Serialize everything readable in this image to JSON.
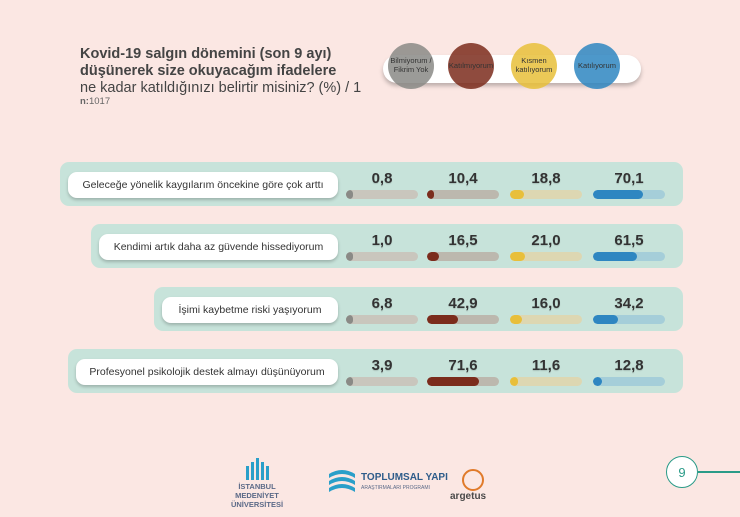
{
  "title": {
    "bold_line1": "Kovid-19 salgın dönemini (son 9 ayı)",
    "bold_line2": "düşünerek size okuyacağım ifadelere",
    "normal_line": "ne kadar katıldığınızı belirtir misiniz? (%) / 1",
    "n_label": "n:",
    "n_value": "1017"
  },
  "legend": [
    {
      "label_line1": "Bilmiyorum /",
      "label_line2": "Fikrim Yok",
      "color": "#8a8a86"
    },
    {
      "label_line1": "Katılmıyorum",
      "label_line2": "",
      "color": "#7b2c1c"
    },
    {
      "label_line1": "Kısmen",
      "label_line2": "katılıyorum",
      "color": "#e8bf3a"
    },
    {
      "label_line1": "Katılıyorum",
      "label_line2": "",
      "color": "#2e86c1"
    }
  ],
  "chart_data": {
    "type": "bar",
    "categories": [
      "Geleceğe yönelik kaygılarım öncekine göre çok arttı",
      "Kendimi artık daha az güvende hissediyorum",
      "İşimi kaybetme riski yaşıyorum",
      "Profesyonel psikolojik destek almayı düşünüyorum"
    ],
    "series": [
      {
        "name": "Bilmiyorum / Fikrim Yok",
        "values": [
          0.8,
          1.0,
          6.8,
          3.9
        ],
        "labels": [
          "0,8",
          "1,0",
          "6,8",
          "3,9"
        ],
        "color": "#8a8a86",
        "track": "#c9c6bd"
      },
      {
        "name": "Katılmıyorum",
        "values": [
          10.4,
          16.5,
          42.9,
          71.6
        ],
        "labels": [
          "10,4",
          "16,5",
          "42,9",
          "71,6"
        ],
        "color": "#7b2c1c",
        "track": "#bcb8ae"
      },
      {
        "name": "Kısmen katılıyorum",
        "values": [
          18.8,
          21.0,
          16.0,
          11.6
        ],
        "labels": [
          "18,8",
          "21,0",
          "16,0",
          "11,6"
        ],
        "color": "#e8bf3a",
        "track": "#ddd7b2"
      },
      {
        "name": "Katılıyorum",
        "values": [
          70.1,
          61.5,
          34.2,
          12.8
        ],
        "labels": [
          "70,1",
          "61,5",
          "34,2",
          "12,8"
        ],
        "color": "#2e86c1",
        "track": "#a5ced9"
      }
    ],
    "ylim": [
      0,
      100
    ]
  },
  "footer": {
    "logo1_line1": "İSTANBUL MEDENİYET",
    "logo1_line2": "ÜNİVERSİTESİ",
    "logo2_main": "TOPLUMSAL YAPI",
    "logo2_sub": "ARAŞTIRMALARI PROGRAMI",
    "logo3": "argetus",
    "page_number": "9"
  }
}
